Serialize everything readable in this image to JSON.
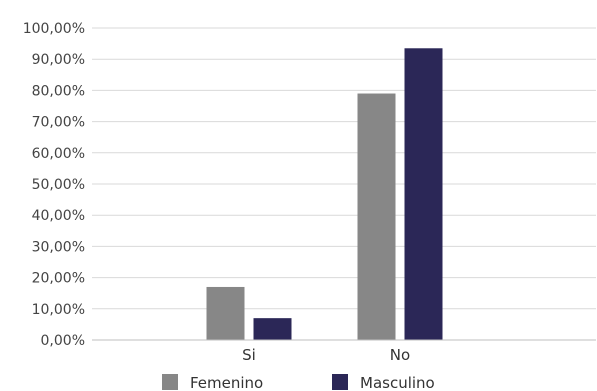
{
  "chart_data": {
    "type": "bar",
    "categories": [
      "Si",
      "No"
    ],
    "series": [
      {
        "name": "Femenino",
        "values": [
          17,
          79
        ],
        "color": "#878787"
      },
      {
        "name": "Masculino",
        "values": [
          7,
          93.5
        ],
        "color": "#2b2757"
      }
    ],
    "y_ticks": [
      "0,00%",
      "10,00%",
      "20,00%",
      "30,00%",
      "40,00%",
      "50,00%",
      "60,00%",
      "70,00%",
      "80,00%",
      "90,00%",
      "100,00%"
    ],
    "ylim": [
      0,
      100
    ],
    "grid": true,
    "legend": "bottom"
  }
}
